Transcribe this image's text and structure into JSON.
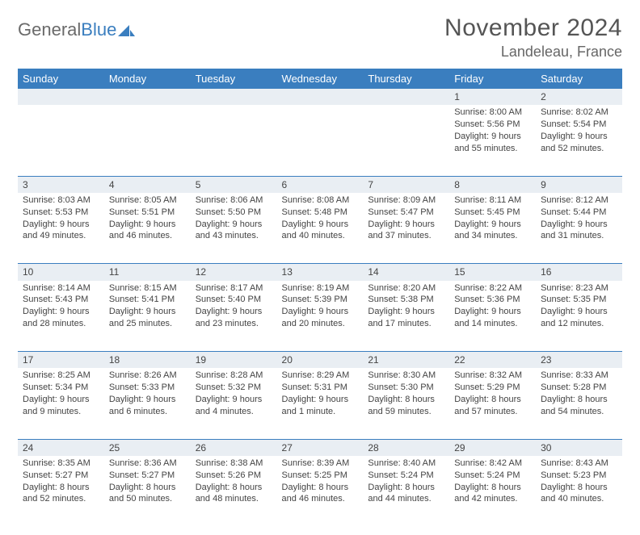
{
  "logo": {
    "text1": "General",
    "text2": "Blue"
  },
  "title": "November 2024",
  "location": "Landeleau, France",
  "dayHeaders": [
    "Sunday",
    "Monday",
    "Tuesday",
    "Wednesday",
    "Thursday",
    "Friday",
    "Saturday"
  ],
  "weeks": [
    {
      "nums": [
        "",
        "",
        "",
        "",
        "",
        "1",
        "2"
      ],
      "cells": [
        {},
        {},
        {},
        {},
        {},
        {
          "sunrise": "Sunrise: 8:00 AM",
          "sunset": "Sunset: 5:56 PM",
          "daylight": "Daylight: 9 hours and 55 minutes."
        },
        {
          "sunrise": "Sunrise: 8:02 AM",
          "sunset": "Sunset: 5:54 PM",
          "daylight": "Daylight: 9 hours and 52 minutes."
        }
      ]
    },
    {
      "nums": [
        "3",
        "4",
        "5",
        "6",
        "7",
        "8",
        "9"
      ],
      "cells": [
        {
          "sunrise": "Sunrise: 8:03 AM",
          "sunset": "Sunset: 5:53 PM",
          "daylight": "Daylight: 9 hours and 49 minutes."
        },
        {
          "sunrise": "Sunrise: 8:05 AM",
          "sunset": "Sunset: 5:51 PM",
          "daylight": "Daylight: 9 hours and 46 minutes."
        },
        {
          "sunrise": "Sunrise: 8:06 AM",
          "sunset": "Sunset: 5:50 PM",
          "daylight": "Daylight: 9 hours and 43 minutes."
        },
        {
          "sunrise": "Sunrise: 8:08 AM",
          "sunset": "Sunset: 5:48 PM",
          "daylight": "Daylight: 9 hours and 40 minutes."
        },
        {
          "sunrise": "Sunrise: 8:09 AM",
          "sunset": "Sunset: 5:47 PM",
          "daylight": "Daylight: 9 hours and 37 minutes."
        },
        {
          "sunrise": "Sunrise: 8:11 AM",
          "sunset": "Sunset: 5:45 PM",
          "daylight": "Daylight: 9 hours and 34 minutes."
        },
        {
          "sunrise": "Sunrise: 8:12 AM",
          "sunset": "Sunset: 5:44 PM",
          "daylight": "Daylight: 9 hours and 31 minutes."
        }
      ]
    },
    {
      "nums": [
        "10",
        "11",
        "12",
        "13",
        "14",
        "15",
        "16"
      ],
      "cells": [
        {
          "sunrise": "Sunrise: 8:14 AM",
          "sunset": "Sunset: 5:43 PM",
          "daylight": "Daylight: 9 hours and 28 minutes."
        },
        {
          "sunrise": "Sunrise: 8:15 AM",
          "sunset": "Sunset: 5:41 PM",
          "daylight": "Daylight: 9 hours and 25 minutes."
        },
        {
          "sunrise": "Sunrise: 8:17 AM",
          "sunset": "Sunset: 5:40 PM",
          "daylight": "Daylight: 9 hours and 23 minutes."
        },
        {
          "sunrise": "Sunrise: 8:19 AM",
          "sunset": "Sunset: 5:39 PM",
          "daylight": "Daylight: 9 hours and 20 minutes."
        },
        {
          "sunrise": "Sunrise: 8:20 AM",
          "sunset": "Sunset: 5:38 PM",
          "daylight": "Daylight: 9 hours and 17 minutes."
        },
        {
          "sunrise": "Sunrise: 8:22 AM",
          "sunset": "Sunset: 5:36 PM",
          "daylight": "Daylight: 9 hours and 14 minutes."
        },
        {
          "sunrise": "Sunrise: 8:23 AM",
          "sunset": "Sunset: 5:35 PM",
          "daylight": "Daylight: 9 hours and 12 minutes."
        }
      ]
    },
    {
      "nums": [
        "17",
        "18",
        "19",
        "20",
        "21",
        "22",
        "23"
      ],
      "cells": [
        {
          "sunrise": "Sunrise: 8:25 AM",
          "sunset": "Sunset: 5:34 PM",
          "daylight": "Daylight: 9 hours and 9 minutes."
        },
        {
          "sunrise": "Sunrise: 8:26 AM",
          "sunset": "Sunset: 5:33 PM",
          "daylight": "Daylight: 9 hours and 6 minutes."
        },
        {
          "sunrise": "Sunrise: 8:28 AM",
          "sunset": "Sunset: 5:32 PM",
          "daylight": "Daylight: 9 hours and 4 minutes."
        },
        {
          "sunrise": "Sunrise: 8:29 AM",
          "sunset": "Sunset: 5:31 PM",
          "daylight": "Daylight: 9 hours and 1 minute."
        },
        {
          "sunrise": "Sunrise: 8:30 AM",
          "sunset": "Sunset: 5:30 PM",
          "daylight": "Daylight: 8 hours and 59 minutes."
        },
        {
          "sunrise": "Sunrise: 8:32 AM",
          "sunset": "Sunset: 5:29 PM",
          "daylight": "Daylight: 8 hours and 57 minutes."
        },
        {
          "sunrise": "Sunrise: 8:33 AM",
          "sunset": "Sunset: 5:28 PM",
          "daylight": "Daylight: 8 hours and 54 minutes."
        }
      ]
    },
    {
      "nums": [
        "24",
        "25",
        "26",
        "27",
        "28",
        "29",
        "30"
      ],
      "cells": [
        {
          "sunrise": "Sunrise: 8:35 AM",
          "sunset": "Sunset: 5:27 PM",
          "daylight": "Daylight: 8 hours and 52 minutes."
        },
        {
          "sunrise": "Sunrise: 8:36 AM",
          "sunset": "Sunset: 5:27 PM",
          "daylight": "Daylight: 8 hours and 50 minutes."
        },
        {
          "sunrise": "Sunrise: 8:38 AM",
          "sunset": "Sunset: 5:26 PM",
          "daylight": "Daylight: 8 hours and 48 minutes."
        },
        {
          "sunrise": "Sunrise: 8:39 AM",
          "sunset": "Sunset: 5:25 PM",
          "daylight": "Daylight: 8 hours and 46 minutes."
        },
        {
          "sunrise": "Sunrise: 8:40 AM",
          "sunset": "Sunset: 5:24 PM",
          "daylight": "Daylight: 8 hours and 44 minutes."
        },
        {
          "sunrise": "Sunrise: 8:42 AM",
          "sunset": "Sunset: 5:24 PM",
          "daylight": "Daylight: 8 hours and 42 minutes."
        },
        {
          "sunrise": "Sunrise: 8:43 AM",
          "sunset": "Sunset: 5:23 PM",
          "daylight": "Daylight: 8 hours and 40 minutes."
        }
      ]
    }
  ],
  "colors": {
    "headerBg": "#3a7ebf",
    "dayNumBg": "#e9eef3",
    "ruleColor": "#3a7ebf"
  }
}
